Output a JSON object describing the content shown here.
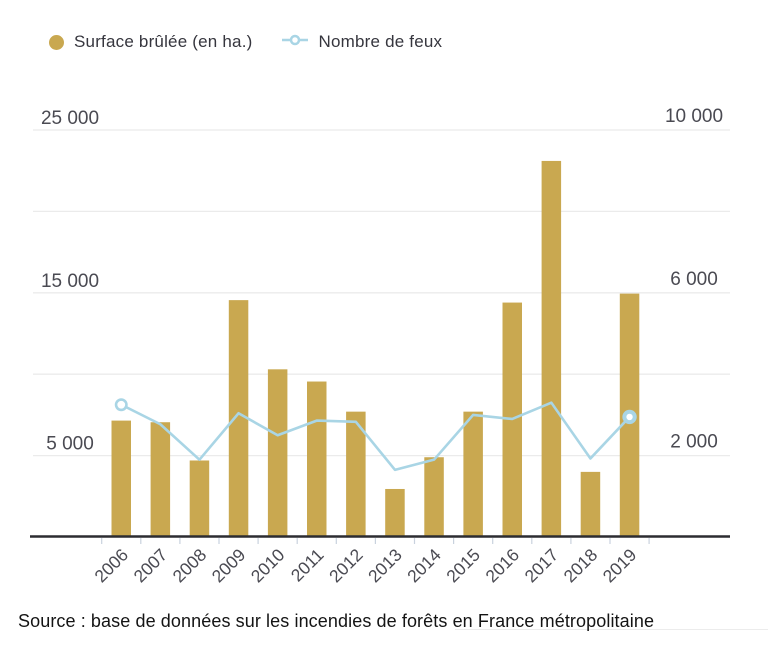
{
  "chart_data": {
    "type": "bar+line",
    "title": "",
    "categories": [
      "2006",
      "2007",
      "2008",
      "2009",
      "2010",
      "2011",
      "2012",
      "2013",
      "2014",
      "2015",
      "2016",
      "2017",
      "2018",
      "2019"
    ],
    "series": [
      {
        "name": "Surface brûlée (en ha.)",
        "type": "bar",
        "axis": "left",
        "color": "#C9A850",
        "values": [
          7150,
          7050,
          4700,
          14550,
          10300,
          9550,
          7700,
          2950,
          4900,
          7700,
          14400,
          23100,
          4000,
          14950
        ]
      },
      {
        "name": "Nombre de feux",
        "type": "line",
        "axis": "right",
        "color": "#A9D5E5",
        "values": [
          3250,
          2770,
          1900,
          3040,
          2500,
          2860,
          2830,
          1650,
          1900,
          3000,
          2900,
          3300,
          1930,
          2950
        ]
      }
    ],
    "left_axis": {
      "min": 0,
      "max": 25000,
      "gridlines": [
        25000,
        20000,
        15000,
        10000,
        5000
      ],
      "labels": {
        "25000": "25 000",
        "15000": "15 000",
        "5000": "5 000"
      }
    },
    "right_axis": {
      "min": 0,
      "max": 10000,
      "labels": {
        "10000": "10 000",
        "6000": "6 000",
        "2000": "2 000"
      }
    },
    "grid": true,
    "legend_position": "top-left",
    "marker_points": [
      "2006",
      "2019"
    ]
  },
  "source_note": "Source : base de données sur les incendies de forêts en France métropolitaine",
  "colors": {
    "bar": "#C9A850",
    "line": "#A9D5E5",
    "grid": "#EBEBEB",
    "axis_text": "#4A4A52",
    "baseline": "#2C2C31",
    "tick": "#C9D2DE",
    "legend_text": "#36363E",
    "source_text": "#141414",
    "background": "#FFFFFF"
  }
}
